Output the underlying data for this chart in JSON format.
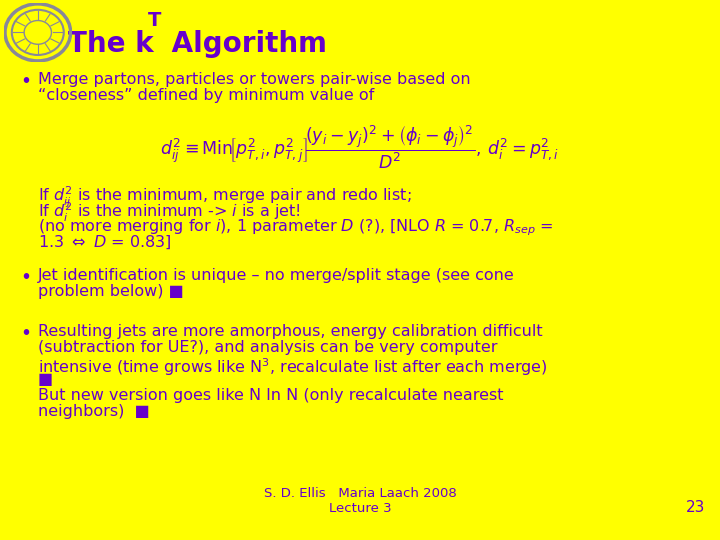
{
  "background_color": "#FFFF00",
  "title_prefix": "The k",
  "title_suffix": " Algorithm",
  "title_color": "#6600CC",
  "title_fontsize": 20,
  "text_color": "#6600CC",
  "body_fontsize": 11.5,
  "footer_text": "S. D. Ellis   Maria Laach 2008\nLecture 3",
  "page_number": "23",
  "bullet1_line1": "Merge partons, particles or towers pair-wise based on",
  "bullet1_line2": "“closeness” defined by minimum value of",
  "formula": "$d^2_{ij} \\equiv \\mathrm{Min}\\!\\left[p^2_{T,i}, p^2_{T,j}\\right]\\!\\dfrac{\\left(y_i - y_j\\right)^2 + \\left(\\phi_i - \\phi_j\\right)^2}{D^2},\\, d^2_i = p^2_{T,i}$",
  "sub_text_line1": "If $d^2_{ij}$ is the minimum, merge pair and redo list;",
  "sub_text_line2": "If $d^2_i$ is the minimum -> $i$ is a jet!",
  "sub_text_line3": "(no more merging for $i$), 1 parameter $D$ (?), [NLO $R$ = 0.7, $R_{sep}$ =",
  "sub_text_line4": "1.3 $\\Leftrightarrow$ $D$ = 0.83]",
  "bullet2_line1": "Jet identification is unique – no merge/split stage (see cone",
  "bullet2_line2": "problem below) ■",
  "bullet3_line1": "Resulting jets are more amorphous, energy calibration difficult",
  "bullet3_line2": "(subtraction for UE?), and analysis can be very computer",
  "bullet3_line3": "intensive (time grows like N$^3$, recalculate list after each merge)",
  "bullet3_line4": "■",
  "bullet3_line5": "But new version goes like N ln N (only recalculate nearest",
  "bullet3_line6": "neighbors)  ■"
}
